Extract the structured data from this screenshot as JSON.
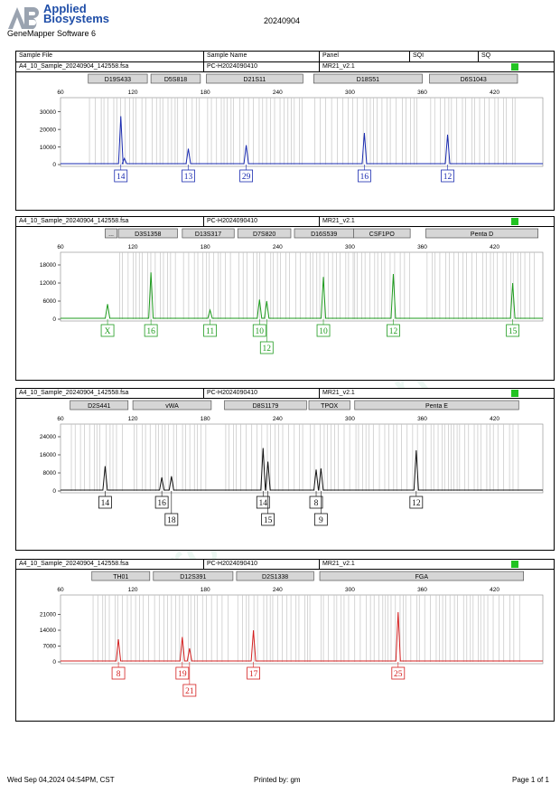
{
  "header": {
    "brand_line1": "Applied",
    "brand_line2": "Biosystems",
    "software": "GeneMapper Software 6",
    "date": "20240904"
  },
  "columns": {
    "sample_file": "Sample File",
    "sample_name": "Sample Name",
    "panel": "Panel",
    "sqi": "SQI",
    "sq": "SQ"
  },
  "footer": {
    "timestamp": "Wed Sep 04,2024 04:54PM, CST",
    "printed_by": "Printed by: gm",
    "page": "Page 1 of 1"
  },
  "watermark": "www.proteli.com.cn",
  "chart_data": [
    {
      "type": "line",
      "sample_file": "A4_10_Sample_20240904_142558.fsa",
      "sample_name": "PC-H2024090410",
      "panel": "MR21_v2.1",
      "color": "#1a2bb0",
      "xlim": [
        60,
        460
      ],
      "xticks": [
        60,
        120,
        180,
        240,
        300,
        360,
        420
      ],
      "ylim": [
        0,
        36000
      ],
      "yticks": [
        0,
        10000,
        20000,
        30000
      ],
      "markers": [
        {
          "name": "D19S433",
          "x0": 83,
          "x1": 132
        },
        {
          "name": "D5S818",
          "x0": 135,
          "x1": 176
        },
        {
          "name": "D21S11",
          "x0": 181,
          "x1": 261
        },
        {
          "name": "D18S51",
          "x0": 270,
          "x1": 360
        },
        {
          "name": "D6S1043",
          "x0": 366,
          "x1": 439
        }
      ],
      "peaks": [
        {
          "x": 110,
          "y": 27500
        },
        {
          "x": 113,
          "y": 3500
        },
        {
          "x": 166,
          "y": 9000
        },
        {
          "x": 214,
          "y": 11000
        },
        {
          "x": 312,
          "y": 18000
        },
        {
          "x": 381,
          "y": 17000
        }
      ],
      "labels": [
        {
          "x": 110,
          "text": "14"
        },
        {
          "x": 166,
          "text": "13"
        },
        {
          "x": 214,
          "text": "29"
        },
        {
          "x": 312,
          "text": "16"
        },
        {
          "x": 381,
          "text": "12"
        }
      ]
    },
    {
      "type": "line",
      "sample_file": "A4_10_Sample_20240904_142558.fsa",
      "sample_name": "PC-H2024090410",
      "panel": "MR21_v2.1",
      "color": "#1e9b1e",
      "xlim": [
        60,
        460
      ],
      "xticks": [
        60,
        120,
        180,
        240,
        300,
        360,
        420
      ],
      "ylim": [
        0,
        21000
      ],
      "yticks": [
        0,
        6000,
        12000,
        18000
      ],
      "markers": [
        {
          "name": "...",
          "x0": 97,
          "x1": 107
        },
        {
          "name": "D3S1358",
          "x0": 108,
          "x1": 157
        },
        {
          "name": "D13S317",
          "x0": 161,
          "x1": 204
        },
        {
          "name": "D7S820",
          "x0": 207,
          "x1": 251
        },
        {
          "name": "D16S539",
          "x0": 254,
          "x1": 303
        },
        {
          "name": "CSF1PO",
          "x0": 303,
          "x1": 350
        },
        {
          "name": "Penta D",
          "x0": 363,
          "x1": 456
        }
      ],
      "peaks": [
        {
          "x": 99,
          "y": 5000
        },
        {
          "x": 135,
          "y": 15500
        },
        {
          "x": 184,
          "y": 3000
        },
        {
          "x": 225,
          "y": 6500
        },
        {
          "x": 231,
          "y": 6000
        },
        {
          "x": 278,
          "y": 14000
        },
        {
          "x": 336,
          "y": 15000
        },
        {
          "x": 435,
          "y": 12000
        }
      ],
      "labels": [
        {
          "x": 99,
          "text": "X"
        },
        {
          "x": 135,
          "text": "16"
        },
        {
          "x": 184,
          "text": "11"
        },
        {
          "x": 225,
          "text": "10"
        },
        {
          "x": 231,
          "text": "12",
          "row": 2
        },
        {
          "x": 278,
          "text": "10"
        },
        {
          "x": 336,
          "text": "12"
        },
        {
          "x": 435,
          "text": "15"
        }
      ]
    },
    {
      "type": "line",
      "sample_file": "A4_10_Sample_20240904_142558.fsa",
      "sample_name": "PC-H2024090410",
      "panel": "MR21_v2.1",
      "color": "#111111",
      "xlim": [
        60,
        460
      ],
      "xticks": [
        60,
        120,
        180,
        240,
        300,
        360,
        420
      ],
      "ylim": [
        0,
        28000
      ],
      "yticks": [
        0,
        8000,
        16000,
        24000
      ],
      "markers": [
        {
          "name": "D2S441",
          "x0": 68,
          "x1": 116
        },
        {
          "name": "vWA",
          "x0": 120,
          "x1": 185
        },
        {
          "name": "D8S1179",
          "x0": 196,
          "x1": 264
        },
        {
          "name": "TPOX",
          "x0": 266,
          "x1": 300
        },
        {
          "name": "Penta E",
          "x0": 304,
          "x1": 440
        }
      ],
      "peaks": [
        {
          "x": 97,
          "y": 11000
        },
        {
          "x": 144,
          "y": 6000
        },
        {
          "x": 152,
          "y": 6500
        },
        {
          "x": 228,
          "y": 19000
        },
        {
          "x": 232,
          "y": 13000
        },
        {
          "x": 272,
          "y": 9500
        },
        {
          "x": 276,
          "y": 10000
        },
        {
          "x": 355,
          "y": 18000
        }
      ],
      "labels": [
        {
          "x": 97,
          "text": "14"
        },
        {
          "x": 144,
          "text": "16"
        },
        {
          "x": 152,
          "text": "18",
          "row": 2
        },
        {
          "x": 228,
          "text": "14"
        },
        {
          "x": 232,
          "text": "15",
          "row": 2
        },
        {
          "x": 272,
          "text": "8"
        },
        {
          "x": 276,
          "text": "9",
          "row": 2
        },
        {
          "x": 355,
          "text": "12"
        }
      ]
    },
    {
      "type": "line",
      "sample_file": "A4_10_Sample_20240904_142558.fsa",
      "sample_name": "PC-H2024090410",
      "panel": "MR21_v2.1",
      "color": "#d42020",
      "xlim": [
        60,
        460
      ],
      "xticks": [
        60,
        120,
        180,
        240,
        300,
        360,
        420
      ],
      "ylim": [
        0,
        28000
      ],
      "yticks": [
        0,
        7000,
        14000,
        21000
      ],
      "markers": [
        {
          "name": "TH01",
          "x0": 86,
          "x1": 134
        },
        {
          "name": "D12S391",
          "x0": 137,
          "x1": 203
        },
        {
          "name": "D2S1338",
          "x0": 206,
          "x1": 270
        },
        {
          "name": "FGA",
          "x0": 275,
          "x1": 444
        }
      ],
      "peaks": [
        {
          "x": 108,
          "y": 10000
        },
        {
          "x": 161,
          "y": 11000
        },
        {
          "x": 167,
          "y": 6000
        },
        {
          "x": 220,
          "y": 14000
        },
        {
          "x": 340,
          "y": 22000
        }
      ],
      "labels": [
        {
          "x": 108,
          "text": "8"
        },
        {
          "x": 161,
          "text": "19"
        },
        {
          "x": 167,
          "text": "21",
          "row": 2
        },
        {
          "x": 220,
          "text": "17"
        },
        {
          "x": 340,
          "text": "25"
        }
      ]
    }
  ]
}
